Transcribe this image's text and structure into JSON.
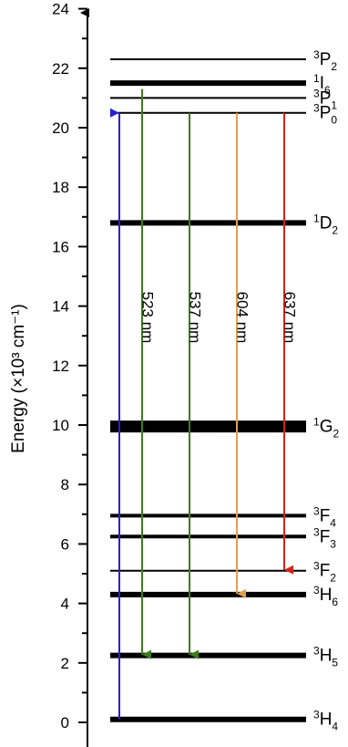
{
  "axis": {
    "label": "Energy (×10³ cm⁻¹)",
    "ticks": [
      0,
      2,
      4,
      6,
      8,
      10,
      12,
      14,
      16,
      18,
      20,
      22,
      24
    ]
  },
  "levels": [
    {
      "name": "3H4",
      "sup": "3",
      "base": "H",
      "sub": "4",
      "energy": 0.1,
      "weight": "thick"
    },
    {
      "name": "3H5",
      "sup": "3",
      "base": "H",
      "sub": "5",
      "energy": 2.25,
      "weight": "thick"
    },
    {
      "name": "3H6",
      "sup": "3",
      "base": "H",
      "sub": "6",
      "energy": 4.3,
      "weight": "thick"
    },
    {
      "name": "3F2",
      "sup": "3",
      "base": "F",
      "sub": "2",
      "energy": 5.1,
      "weight": "thin"
    },
    {
      "name": "3F3",
      "sup": "3",
      "base": "F",
      "sub": "3",
      "energy": 6.25,
      "weight": "medium"
    },
    {
      "name": "3F4",
      "sup": "3",
      "base": "F",
      "sub": "4",
      "energy": 6.95,
      "weight": "medium"
    },
    {
      "name": "1G2",
      "sup": "1",
      "base": "G",
      "sub": "2",
      "energy": 9.95,
      "weight": "xthick"
    },
    {
      "name": "1D2",
      "sup": "1",
      "base": "D",
      "sub": "2",
      "energy": 16.8,
      "weight": "thick"
    },
    {
      "name": "3P0",
      "sup": "3",
      "base": "P",
      "sub": "0",
      "energy": 20.5,
      "weight": "thin"
    },
    {
      "name": "3P1",
      "sup": "3",
      "base": "P",
      "sub": "1",
      "energy": 21.0,
      "weight": "thin"
    },
    {
      "name": "1I6",
      "sup": "1",
      "base": "I",
      "sub": "6",
      "energy": 21.5,
      "weight": "thick"
    },
    {
      "name": "3P2",
      "sup": "3",
      "base": "P",
      "sub": "2",
      "energy": 22.3,
      "weight": "thin"
    }
  ],
  "transitions": [
    {
      "id": "excitation",
      "label": "",
      "from": 0.1,
      "to": 20.5,
      "color": "#2a1fd0",
      "direction": "up"
    },
    {
      "id": "t523",
      "label": "523 nm",
      "from": 21.3,
      "to": 2.25,
      "color": "#3c7d1c",
      "direction": "down"
    },
    {
      "id": "t537",
      "label": "537 nm",
      "from": 20.5,
      "to": 2.25,
      "color": "#3c7d1c",
      "direction": "down"
    },
    {
      "id": "t604",
      "label": "604 nm",
      "from": 20.5,
      "to": 4.3,
      "color": "#e0a050",
      "direction": "down"
    },
    {
      "id": "t637",
      "label": "637 nm",
      "from": 20.5,
      "to": 5.1,
      "color": "#d42418",
      "direction": "down"
    }
  ]
}
